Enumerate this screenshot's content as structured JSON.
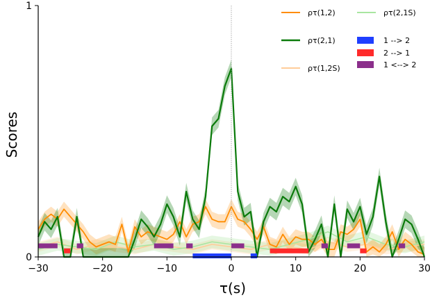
{
  "chart_data": {
    "type": "line",
    "xlabel": "τ(s)",
    "ylabel": "Scores",
    "xlim": [
      -30,
      30
    ],
    "ylim": [
      0,
      1
    ],
    "xticks": [
      "−30",
      "−20",
      "−10",
      "0",
      "10",
      "20",
      "30"
    ],
    "xtick_values": [
      -30,
      -20,
      -10,
      0,
      10,
      20,
      30
    ],
    "yticks": [
      "0",
      "1"
    ],
    "ytick_values": [
      0,
      1
    ],
    "zero_line": true,
    "legend_position": "top-right",
    "series": [
      {
        "name": "ρτ(1,2)",
        "color": "#ff8c00",
        "band_alpha": 0.25,
        "x": [
          -30,
          -29,
          -28,
          -27,
          -26,
          -25,
          -24,
          -23,
          -22,
          -21,
          -20,
          -19,
          -18,
          -17,
          -16,
          -15,
          -14,
          -13,
          -12,
          -11,
          -10,
          -9,
          -8,
          -7,
          -6,
          -5,
          -4,
          -3,
          -2,
          -1,
          0,
          1,
          2,
          3,
          4,
          5,
          6,
          7,
          8,
          9,
          10,
          11,
          12,
          13,
          14,
          15,
          16,
          17,
          18,
          19,
          20,
          21,
          22,
          23,
          24,
          25,
          26,
          27,
          28,
          29,
          30
        ],
        "y": [
          0.11,
          0.15,
          0.17,
          0.15,
          0.19,
          0.16,
          0.13,
          0.1,
          0.06,
          0.04,
          0.05,
          0.06,
          0.05,
          0.13,
          0.02,
          0.12,
          0.08,
          0.1,
          0.09,
          0.08,
          0.07,
          0.09,
          0.14,
          0.08,
          0.13,
          0.14,
          0.2,
          0.15,
          0.14,
          0.14,
          0.2,
          0.15,
          0.14,
          0.11,
          0.07,
          0.12,
          0.05,
          0.04,
          0.09,
          0.05,
          0.08,
          0.07,
          0.07,
          0.05,
          0.07,
          0.03,
          0.03,
          0.1,
          0.09,
          0.11,
          0.15,
          0.02,
          0.04,
          0.02,
          0.05,
          0.1,
          0.03,
          0.07,
          0.05,
          0.02,
          0.01
        ],
        "band": 0.03
      },
      {
        "name": "ρτ(2,1)",
        "color": "#0a7a0a",
        "band_alpha": 0.3,
        "x": [
          -30,
          -29,
          -28,
          -27,
          -26,
          -25,
          -24,
          -23,
          -22,
          -21,
          -20,
          -19,
          -18,
          -17,
          -16,
          -15,
          -14,
          -13,
          -12,
          -11,
          -10,
          -9,
          -8,
          -7,
          -6,
          -5,
          -4,
          -3,
          -2,
          -1,
          0,
          1,
          2,
          3,
          4,
          5,
          6,
          7,
          8,
          9,
          10,
          11,
          12,
          13,
          14,
          15,
          16,
          17,
          18,
          19,
          20,
          21,
          22,
          23,
          24,
          25,
          26,
          27,
          28,
          29,
          30
        ],
        "y": [
          0.08,
          0.14,
          0.11,
          0.16,
          0.0,
          0.0,
          0.16,
          0.0,
          0.0,
          0.0,
          0.0,
          0.0,
          0.0,
          0.0,
          0.0,
          0.07,
          0.15,
          0.12,
          0.08,
          0.13,
          0.21,
          0.16,
          0.08,
          0.26,
          0.15,
          0.11,
          0.24,
          0.52,
          0.55,
          0.68,
          0.75,
          0.26,
          0.16,
          0.18,
          0.0,
          0.14,
          0.2,
          0.18,
          0.24,
          0.22,
          0.28,
          0.21,
          0.02,
          0.07,
          0.13,
          0.0,
          0.21,
          0.0,
          0.19,
          0.14,
          0.2,
          0.09,
          0.16,
          0.32,
          0.14,
          0.0,
          0.07,
          0.15,
          0.13,
          0.07,
          0.0
        ],
        "band": 0.035
      },
      {
        "name": "ρτ(1,2S)",
        "color": "#ffcc99",
        "band_alpha": 0.3,
        "x": [
          -30,
          -27,
          -24,
          -21,
          -18,
          -15,
          -12,
          -9,
          -6,
          -3,
          0,
          3,
          6,
          9,
          12,
          15,
          18,
          21,
          24,
          27,
          30
        ],
        "y": [
          0.04,
          0.06,
          0.03,
          0.05,
          0.04,
          0.03,
          0.05,
          0.04,
          0.03,
          0.05,
          0.04,
          0.03,
          0.05,
          0.04,
          0.03,
          0.06,
          0.04,
          0.05,
          0.03,
          0.04,
          0.05
        ],
        "band": 0.02
      },
      {
        "name": "ρτ(2,1S)",
        "color": "#a8e6a0",
        "band_alpha": 0.3,
        "x": [
          -30,
          -27,
          -24,
          -21,
          -18,
          -15,
          -12,
          -9,
          -6,
          -3,
          0,
          3,
          6,
          9,
          12,
          15,
          18,
          21,
          24,
          27,
          30
        ],
        "y": [
          0.03,
          0.05,
          0.04,
          0.03,
          0.06,
          0.04,
          0.05,
          0.03,
          0.04,
          0.06,
          0.05,
          0.04,
          0.03,
          0.05,
          0.07,
          0.1,
          0.06,
          0.08,
          0.05,
          0.04,
          0.06
        ],
        "band": 0.025
      }
    ],
    "direction_bars": [
      {
        "name": "1 --> 2",
        "color": "#1f3fff",
        "y": 0.0,
        "segments": [
          [
            -6,
            0
          ],
          [
            3,
            4
          ]
        ]
      },
      {
        "name": "2 --> 1",
        "color": "#ff2b2b",
        "y": 0.02,
        "segments": [
          [
            -26,
            -25
          ],
          [
            6,
            12
          ],
          [
            20,
            21
          ]
        ]
      },
      {
        "name": "1 <--> 2",
        "color": "#8b2f8b",
        "y": 0.04,
        "segments": [
          [
            -30,
            -27
          ],
          [
            -24,
            -23
          ],
          [
            -12,
            -9
          ],
          [
            -7,
            -6
          ],
          [
            0,
            2
          ],
          [
            14,
            15
          ],
          [
            18,
            20
          ],
          [
            26,
            27
          ]
        ]
      }
    ]
  }
}
